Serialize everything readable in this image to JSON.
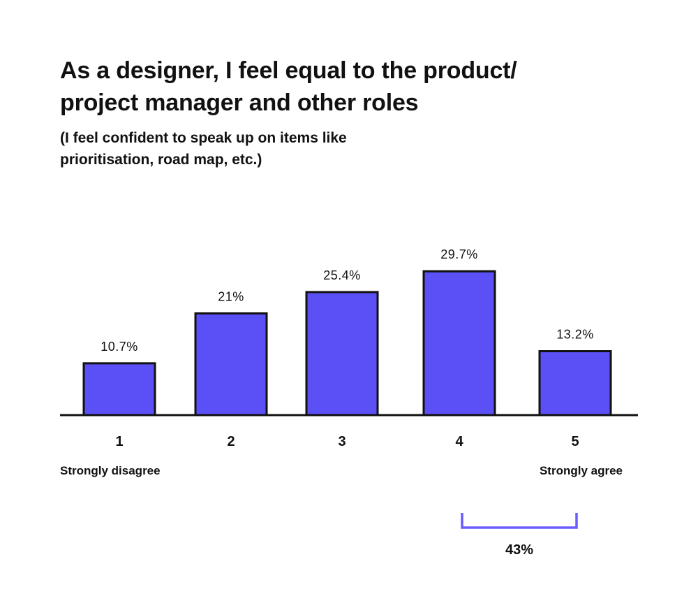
{
  "title": "As a designer, I feel equal to the product/ project manager and other roles",
  "subtitle": "(I feel confident to speak up on items like prioritisation, road map, etc.)",
  "colors": {
    "bar": "#5b50f5",
    "bar_outline": "#111111",
    "bracket": "#6a5cff",
    "text": "#111111"
  },
  "chart_data": {
    "type": "bar",
    "categories": [
      "1",
      "2",
      "3",
      "4",
      "5"
    ],
    "values": [
      10.7,
      21,
      25.4,
      29.7,
      13.2
    ],
    "value_labels": [
      "10.7%",
      "21%",
      "25.4%",
      "29.7%",
      "13.2%"
    ],
    "scale_labels": {
      "low": "Strongly disagree",
      "high": "Strongly agree"
    },
    "annotations": [
      {
        "label": "43%",
        "spans": [
          "4",
          "5"
        ]
      }
    ]
  }
}
